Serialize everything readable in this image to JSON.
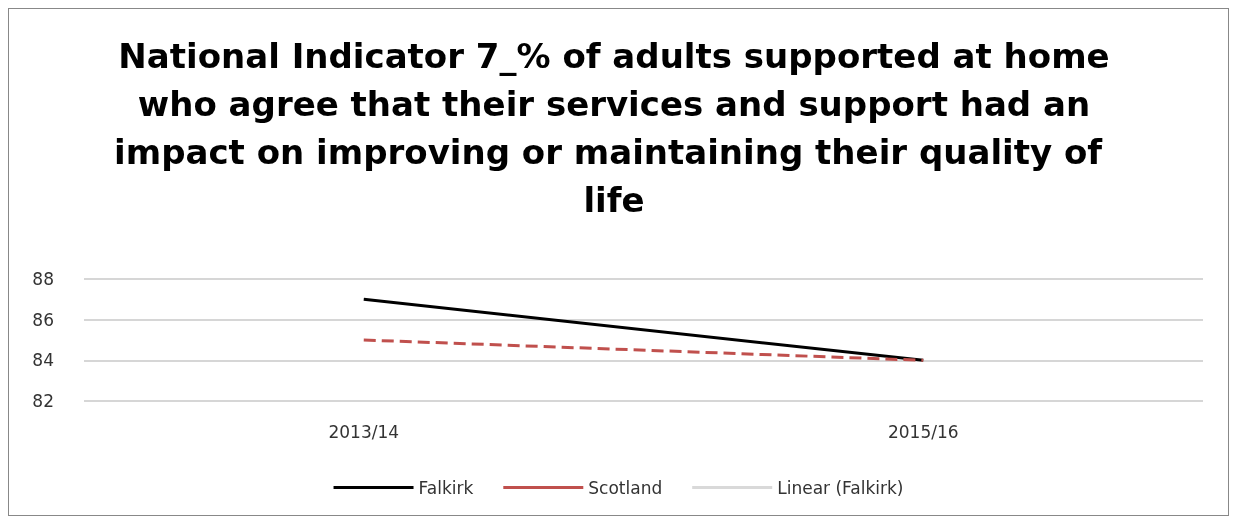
{
  "chart_data": {
    "type": "line",
    "title": "National Indicator 7_% of adults supported at home who agree that their services and support had an impact on improving or maintaining their quality of life",
    "categories": [
      "2013/14",
      "2015/16"
    ],
    "series": [
      {
        "name": "Linear (Falkirk)",
        "color": "#d9d9d9",
        "values": [
          null,
          null
        ],
        "line_style": "solid"
      },
      {
        "name": "Falkirk",
        "color": "#000000",
        "values": [
          87,
          84
        ],
        "line_style": "solid"
      },
      {
        "name": "Scotland",
        "color": "#c0504d",
        "values": [
          85,
          84
        ],
        "line_style": "dashed"
      }
    ],
    "ylim": [
      82,
      88
    ],
    "yticks": [
      82,
      84,
      86,
      88
    ],
    "grid": "y",
    "legend": "bottom",
    "marker": "none"
  }
}
